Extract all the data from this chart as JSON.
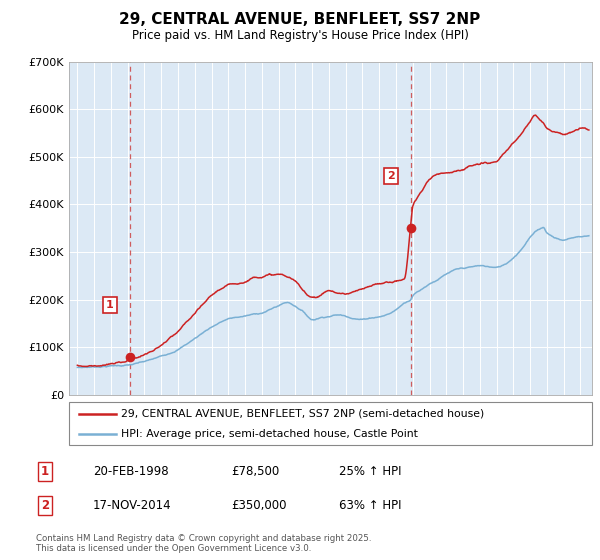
{
  "title": "29, CENTRAL AVENUE, BENFLEET, SS7 2NP",
  "subtitle": "Price paid vs. HM Land Registry's House Price Index (HPI)",
  "line1_color": "#cc2222",
  "line2_color": "#7ab0d4",
  "background_color": "#dce9f5",
  "plot_bg_color": "#dce9f5",
  "sale1_x": 1998.12,
  "sale1_y": 78500,
  "sale2_x": 2014.88,
  "sale2_y": 350000,
  "legend_line1": "29, CENTRAL AVENUE, BENFLEET, SS7 2NP (semi-detached house)",
  "legend_line2": "HPI: Average price, semi-detached house, Castle Point",
  "table_rows": [
    [
      "1",
      "20-FEB-1998",
      "£78,500",
      "25% ↑ HPI"
    ],
    [
      "2",
      "17-NOV-2014",
      "£350,000",
      "63% ↑ HPI"
    ]
  ],
  "footnote": "Contains HM Land Registry data © Crown copyright and database right 2025.\nThis data is licensed under the Open Government Licence v3.0.",
  "vline_color": "#cc4444",
  "ylim": [
    0,
    700000
  ],
  "yticks": [
    0,
    100000,
    200000,
    300000,
    400000,
    500000,
    600000,
    700000
  ],
  "ytick_labels": [
    "£0",
    "£100K",
    "£200K",
    "£300K",
    "£400K",
    "£500K",
    "£600K",
    "£700K"
  ],
  "xlim": [
    1994.5,
    2025.7
  ],
  "hpi_keypoints": [
    [
      1995.0,
      57000
    ],
    [
      1996.0,
      59000
    ],
    [
      1997.0,
      62000
    ],
    [
      1998.0,
      64000
    ],
    [
      1999.0,
      70000
    ],
    [
      2000.0,
      80000
    ],
    [
      2001.0,
      97000
    ],
    [
      2002.0,
      120000
    ],
    [
      2003.0,
      145000
    ],
    [
      2004.0,
      162000
    ],
    [
      2005.0,
      168000
    ],
    [
      2006.0,
      175000
    ],
    [
      2007.0,
      190000
    ],
    [
      2007.5,
      197000
    ],
    [
      2008.0,
      190000
    ],
    [
      2008.5,
      178000
    ],
    [
      2009.0,
      163000
    ],
    [
      2009.5,
      168000
    ],
    [
      2010.0,
      172000
    ],
    [
      2010.5,
      175000
    ],
    [
      2011.0,
      173000
    ],
    [
      2011.5,
      170000
    ],
    [
      2012.0,
      168000
    ],
    [
      2012.5,
      172000
    ],
    [
      2013.0,
      175000
    ],
    [
      2013.5,
      180000
    ],
    [
      2014.0,
      190000
    ],
    [
      2014.5,
      205000
    ],
    [
      2014.88,
      214000
    ],
    [
      2015.0,
      222000
    ],
    [
      2015.5,
      235000
    ],
    [
      2016.0,
      248000
    ],
    [
      2016.5,
      258000
    ],
    [
      2017.0,
      268000
    ],
    [
      2017.5,
      275000
    ],
    [
      2018.0,
      278000
    ],
    [
      2018.5,
      280000
    ],
    [
      2019.0,
      282000
    ],
    [
      2019.5,
      280000
    ],
    [
      2020.0,
      278000
    ],
    [
      2020.5,
      285000
    ],
    [
      2021.0,
      300000
    ],
    [
      2021.5,
      320000
    ],
    [
      2022.0,
      345000
    ],
    [
      2022.5,
      360000
    ],
    [
      2022.8,
      365000
    ],
    [
      2023.0,
      355000
    ],
    [
      2023.5,
      345000
    ],
    [
      2024.0,
      340000
    ],
    [
      2024.5,
      345000
    ],
    [
      2025.0,
      348000
    ],
    [
      2025.5,
      350000
    ]
  ],
  "prop_keypoints": [
    [
      1995.0,
      62000
    ],
    [
      1995.5,
      61000
    ],
    [
      1996.0,
      63000
    ],
    [
      1996.5,
      65000
    ],
    [
      1997.0,
      66000
    ],
    [
      1997.5,
      68000
    ],
    [
      1998.0,
      74000
    ],
    [
      1998.12,
      78500
    ],
    [
      1998.5,
      80000
    ],
    [
      1999.0,
      87000
    ],
    [
      1999.5,
      94000
    ],
    [
      2000.0,
      105000
    ],
    [
      2000.5,
      118000
    ],
    [
      2001.0,
      130000
    ],
    [
      2001.5,
      148000
    ],
    [
      2002.0,
      165000
    ],
    [
      2002.5,
      182000
    ],
    [
      2003.0,
      200000
    ],
    [
      2003.5,
      213000
    ],
    [
      2004.0,
      220000
    ],
    [
      2004.5,
      225000
    ],
    [
      2005.0,
      230000
    ],
    [
      2005.5,
      240000
    ],
    [
      2006.0,
      245000
    ],
    [
      2006.5,
      248000
    ],
    [
      2007.0,
      248000
    ],
    [
      2007.5,
      243000
    ],
    [
      2008.0,
      232000
    ],
    [
      2008.5,
      210000
    ],
    [
      2009.0,
      200000
    ],
    [
      2009.5,
      205000
    ],
    [
      2010.0,
      215000
    ],
    [
      2010.5,
      210000
    ],
    [
      2011.0,
      208000
    ],
    [
      2011.5,
      212000
    ],
    [
      2012.0,
      215000
    ],
    [
      2012.5,
      220000
    ],
    [
      2013.0,
      225000
    ],
    [
      2013.5,
      228000
    ],
    [
      2014.0,
      232000
    ],
    [
      2014.5,
      237000
    ],
    [
      2014.88,
      350000
    ],
    [
      2015.0,
      390000
    ],
    [
      2015.3,
      410000
    ],
    [
      2015.5,
      420000
    ],
    [
      2016.0,
      445000
    ],
    [
      2016.5,
      458000
    ],
    [
      2017.0,
      462000
    ],
    [
      2017.5,
      468000
    ],
    [
      2018.0,
      472000
    ],
    [
      2018.5,
      478000
    ],
    [
      2019.0,
      480000
    ],
    [
      2019.5,
      482000
    ],
    [
      2020.0,
      485000
    ],
    [
      2020.5,
      500000
    ],
    [
      2021.0,
      520000
    ],
    [
      2021.5,
      540000
    ],
    [
      2022.0,
      565000
    ],
    [
      2022.3,
      580000
    ],
    [
      2022.5,
      575000
    ],
    [
      2022.8,
      565000
    ],
    [
      2023.0,
      555000
    ],
    [
      2023.5,
      548000
    ],
    [
      2024.0,
      545000
    ],
    [
      2024.5,
      548000
    ],
    [
      2025.0,
      555000
    ],
    [
      2025.5,
      552000
    ]
  ]
}
